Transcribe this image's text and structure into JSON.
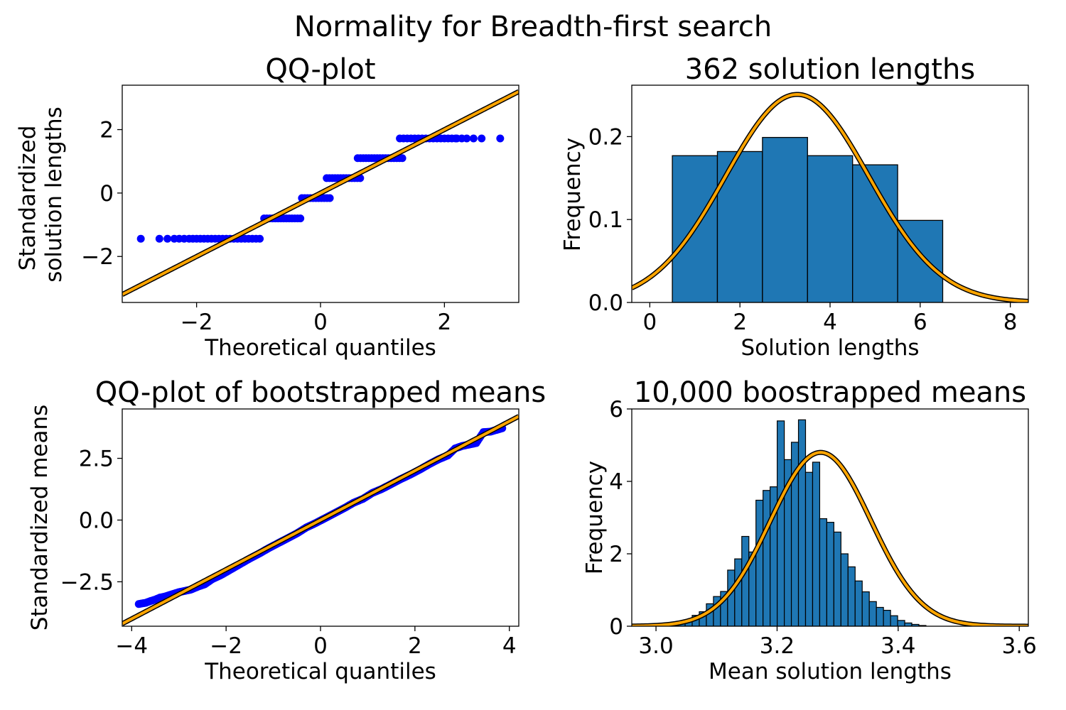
{
  "figure_title": "Normality for Breadth-first search",
  "colors": {
    "points": "#0000ff",
    "bars": "#1f77b4",
    "bar_edge": "#000000",
    "fit_outline": "#000000",
    "fit_line": "#ffa500"
  },
  "chart_data": [
    {
      "type": "scatter",
      "title": "QQ-plot",
      "xlabel": "Theoretical quantiles",
      "ylabel": "Standardized\nsolution lengths",
      "xlim": [
        -3.2,
        3.2
      ],
      "ylim": [
        -3.45,
        3.4
      ],
      "xticks": [
        -2,
        0,
        2
      ],
      "yticks": [
        -2,
        0,
        2
      ],
      "xtick_labels": [
        "−2",
        "0",
        "2"
      ],
      "ytick_labels": [
        "−2",
        "0",
        "2"
      ],
      "grid": false,
      "reference_line": {
        "slope": 1,
        "intercept": 0
      },
      "series": [
        {
          "levels": [
            {
              "y": -1.44,
              "x_from": -2.9,
              "x_to": -0.93
            },
            {
              "y": -0.8,
              "x_from": -0.91,
              "x_to": -0.32
            },
            {
              "y": -0.16,
              "x_from": -0.3,
              "x_to": 0.15
            },
            {
              "y": 0.47,
              "x_from": 0.1,
              "x_to": 0.68
            },
            {
              "y": 1.1,
              "x_from": 0.6,
              "x_to": 1.32
            },
            {
              "y": 1.72,
              "x_from": 1.28,
              "x_to": 2.9
            }
          ],
          "tail_x": {
            "low": [
              -2.9,
              -2.6,
              -2.47,
              -2.36,
              -2.28,
              -2.2
            ],
            "high": [
              2.2,
              2.28,
              2.36,
              2.47,
              2.6,
              2.9
            ]
          }
        }
      ]
    },
    {
      "type": "bar",
      "title": "362 solution lengths",
      "xlabel": "Solution lengths",
      "ylabel": "Frequency",
      "xlim": [
        -0.4,
        8.4
      ],
      "ylim": [
        0,
        0.262
      ],
      "xticks": [
        0,
        2,
        4,
        6,
        8
      ],
      "yticks": [
        0.0,
        0.1,
        0.2
      ],
      "xtick_labels": [
        "0",
        "2",
        "4",
        "6",
        "8"
      ],
      "ytick_labels": [
        "0.0",
        "0.1",
        "0.2"
      ],
      "grid": false,
      "categories": [
        "1",
        "2",
        "3",
        "4",
        "5",
        "6"
      ],
      "bin_edges": [
        0.5,
        1.5,
        2.5,
        3.5,
        4.5,
        5.5,
        6.5
      ],
      "values": [
        0.177,
        0.182,
        0.199,
        0.177,
        0.166,
        0.099
      ],
      "normal_fit": {
        "mean": 3.27,
        "sd": 1.59
      }
    },
    {
      "type": "scatter",
      "title": "QQ-plot of bootstrapped means",
      "xlabel": "Theoretical quantiles",
      "ylabel": "Standardized means",
      "xlim": [
        -4.2,
        4.2
      ],
      "ylim": [
        -4.3,
        4.5
      ],
      "xticks": [
        -4,
        -2,
        0,
        2,
        4
      ],
      "yticks": [
        -2.5,
        0.0,
        2.5
      ],
      "xtick_labels": [
        "−4",
        "−2",
        "0",
        "2",
        "4"
      ],
      "ytick_labels": [
        "−2.5",
        "0.0",
        "2.5"
      ],
      "grid": false,
      "reference_line": {
        "slope": 1,
        "intercept": 0
      },
      "series": [
        {
          "points": [
            [
              -3.85,
              -3.4
            ],
            [
              -3.7,
              -3.35
            ],
            [
              -3.6,
              -3.28
            ],
            [
              -3.5,
              -3.22
            ],
            [
              -3.4,
              -3.14
            ],
            [
              -3.3,
              -3.1
            ],
            [
              -3.2,
              -3.04
            ],
            [
              -3.1,
              -2.98
            ],
            [
              -3.0,
              -2.92
            ],
            [
              -2.9,
              -2.88
            ],
            [
              -2.75,
              -2.82
            ],
            [
              -2.6,
              -2.7
            ],
            [
              -2.45,
              -2.6
            ],
            [
              -2.3,
              -2.4
            ],
            [
              -2.1,
              -2.22
            ],
            [
              -1.9,
              -2.0
            ],
            [
              -1.7,
              -1.78
            ],
            [
              -1.5,
              -1.56
            ],
            [
              -1.3,
              -1.36
            ],
            [
              -1.1,
              -1.14
            ],
            [
              -0.9,
              -0.94
            ],
            [
              -0.7,
              -0.74
            ],
            [
              -0.5,
              -0.54
            ],
            [
              -0.3,
              -0.3
            ],
            [
              -0.1,
              -0.12
            ],
            [
              0.1,
              0.08
            ],
            [
              0.3,
              0.28
            ],
            [
              0.5,
              0.48
            ],
            [
              0.7,
              0.7
            ],
            [
              0.9,
              0.86
            ],
            [
              1.1,
              1.1
            ],
            [
              1.3,
              1.26
            ],
            [
              1.5,
              1.46
            ],
            [
              1.7,
              1.66
            ],
            [
              1.9,
              1.84
            ],
            [
              2.1,
              2.04
            ],
            [
              2.3,
              2.26
            ],
            [
              2.5,
              2.46
            ],
            [
              2.7,
              2.62
            ],
            [
              2.85,
              2.9
            ],
            [
              3.0,
              3.0
            ],
            [
              3.15,
              3.06
            ],
            [
              3.3,
              3.12
            ],
            [
              3.45,
              3.56
            ],
            [
              3.6,
              3.58
            ],
            [
              3.85,
              3.72
            ]
          ]
        }
      ]
    },
    {
      "type": "bar",
      "title": "10,000 boostrapped means",
      "xlabel": "Mean solution lengths",
      "ylabel": "Frequency",
      "xlim": [
        2.96,
        3.615
      ],
      "ylim": [
        0,
        6.0
      ],
      "xticks": [
        3.0,
        3.2,
        3.4,
        3.6
      ],
      "yticks": [
        0,
        2,
        4,
        6
      ],
      "xtick_labels": [
        "3.0",
        "3.2",
        "3.4",
        "3.6"
      ],
      "ytick_labels": [
        "0",
        "2",
        "4",
        "6"
      ],
      "grid": false,
      "bin_start": 3.013,
      "bin_width": 0.0117,
      "values": [
        0.03,
        0.07,
        0.11,
        0.15,
        0.3,
        0.4,
        0.62,
        0.82,
        0.96,
        1.55,
        1.86,
        2.48,
        2.05,
        3.48,
        3.75,
        3.85,
        5.67,
        4.6,
        5.08,
        5.7,
        4.25,
        4.53,
        2.97,
        2.87,
        2.6,
        2.0,
        1.64,
        1.25,
        0.95,
        0.68,
        0.52,
        0.44,
        0.29,
        0.16,
        0.09,
        0.05,
        0.02
      ],
      "normal_fit": {
        "mean": 3.272,
        "sd": 0.0831
      }
    }
  ]
}
